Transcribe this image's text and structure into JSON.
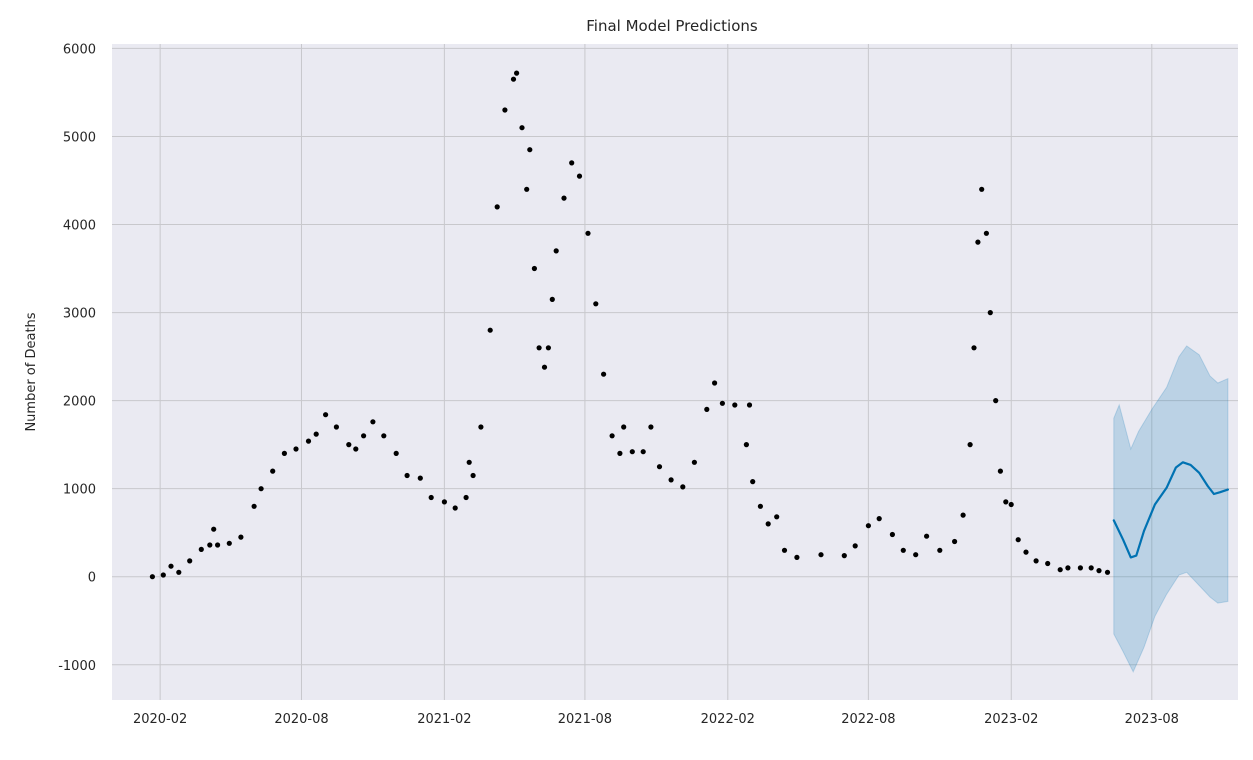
{
  "chart_data": {
    "type": "scatter",
    "title": "Final Model Predictions",
    "xlabel": "",
    "ylabel": "Number of Deaths",
    "x_ticks": [
      "2020-02",
      "2020-08",
      "2021-02",
      "2021-08",
      "2022-02",
      "2022-08",
      "2023-02",
      "2023-08"
    ],
    "y_ticks": [
      -1000,
      0,
      1000,
      2000,
      3000,
      4000,
      5000,
      6000
    ],
    "xlim": [
      "2019-12-01",
      "2023-11-20"
    ],
    "ylim": [
      -1400,
      6050
    ],
    "grid": true,
    "colors": {
      "background": "#eaeaf2",
      "grid": "#c8c8cc",
      "observed": "#000000",
      "forecast_line": "#0072b2",
      "forecast_band": "#0072b2"
    },
    "series": [
      {
        "kind": "observed-points",
        "points": [
          [
            "2020-01-22",
            0
          ],
          [
            "2020-02-05",
            20
          ],
          [
            "2020-02-15",
            120
          ],
          [
            "2020-02-25",
            50
          ],
          [
            "2020-03-10",
            180
          ],
          [
            "2020-03-25",
            310
          ],
          [
            "2020-04-05",
            360
          ],
          [
            "2020-04-10",
            540
          ],
          [
            "2020-04-15",
            360
          ],
          [
            "2020-04-30",
            380
          ],
          [
            "2020-05-15",
            450
          ],
          [
            "2020-06-01",
            800
          ],
          [
            "2020-06-10",
            1000
          ],
          [
            "2020-06-25",
            1200
          ],
          [
            "2020-07-10",
            1400
          ],
          [
            "2020-07-25",
            1450
          ],
          [
            "2020-08-10",
            1540
          ],
          [
            "2020-08-20",
            1620
          ],
          [
            "2020-09-01",
            1840
          ],
          [
            "2020-09-15",
            1700
          ],
          [
            "2020-10-01",
            1500
          ],
          [
            "2020-10-10",
            1450
          ],
          [
            "2020-10-20",
            1600
          ],
          [
            "2020-11-01",
            1760
          ],
          [
            "2020-11-15",
            1600
          ],
          [
            "2020-12-01",
            1400
          ],
          [
            "2020-12-15",
            1150
          ],
          [
            "2021-01-01",
            1120
          ],
          [
            "2021-01-15",
            900
          ],
          [
            "2021-02-01",
            850
          ],
          [
            "2021-02-15",
            780
          ],
          [
            "2021-03-01",
            900
          ],
          [
            "2021-03-05",
            1300
          ],
          [
            "2021-03-10",
            1150
          ],
          [
            "2021-03-20",
            1700
          ],
          [
            "2021-04-01",
            2800
          ],
          [
            "2021-04-10",
            4200
          ],
          [
            "2021-04-20",
            5300
          ],
          [
            "2021-05-01",
            5650
          ],
          [
            "2021-05-05",
            5720
          ],
          [
            "2021-05-12",
            5100
          ],
          [
            "2021-05-18",
            4400
          ],
          [
            "2021-05-22",
            4850
          ],
          [
            "2021-05-28",
            3500
          ],
          [
            "2021-06-03",
            2600
          ],
          [
            "2021-06-10",
            2380
          ],
          [
            "2021-06-15",
            2600
          ],
          [
            "2021-06-20",
            3150
          ],
          [
            "2021-06-25",
            3700
          ],
          [
            "2021-07-05",
            4300
          ],
          [
            "2021-07-15",
            4700
          ],
          [
            "2021-07-25",
            4550
          ],
          [
            "2021-08-05",
            3900
          ],
          [
            "2021-08-15",
            3100
          ],
          [
            "2021-08-25",
            2300
          ],
          [
            "2021-09-05",
            1600
          ],
          [
            "2021-09-15",
            1400
          ],
          [
            "2021-09-20",
            1700
          ],
          [
            "2021-10-01",
            1420
          ],
          [
            "2021-10-15",
            1420
          ],
          [
            "2021-10-25",
            1700
          ],
          [
            "2021-11-05",
            1250
          ],
          [
            "2021-11-20",
            1100
          ],
          [
            "2021-12-05",
            1020
          ],
          [
            "2021-12-20",
            1300
          ],
          [
            "2022-01-05",
            1900
          ],
          [
            "2022-01-15",
            2200
          ],
          [
            "2022-01-25",
            1970
          ],
          [
            "2022-02-10",
            1950
          ],
          [
            "2022-02-25",
            1500
          ],
          [
            "2022-03-01",
            1950
          ],
          [
            "2022-03-05",
            1080
          ],
          [
            "2022-03-15",
            800
          ],
          [
            "2022-03-25",
            600
          ],
          [
            "2022-04-05",
            680
          ],
          [
            "2022-04-15",
            300
          ],
          [
            "2022-05-01",
            220
          ],
          [
            "2022-06-01",
            250
          ],
          [
            "2022-07-01",
            240
          ],
          [
            "2022-07-15",
            350
          ],
          [
            "2022-08-01",
            580
          ],
          [
            "2022-08-15",
            660
          ],
          [
            "2022-09-01",
            480
          ],
          [
            "2022-09-15",
            300
          ],
          [
            "2022-10-01",
            250
          ],
          [
            "2022-10-15",
            460
          ],
          [
            "2022-11-01",
            300
          ],
          [
            "2022-11-20",
            400
          ],
          [
            "2022-12-01",
            700
          ],
          [
            "2022-12-10",
            1500
          ],
          [
            "2022-12-15",
            2600
          ],
          [
            "2022-12-20",
            3800
          ],
          [
            "2022-12-25",
            4400
          ],
          [
            "2022-12-31",
            3900
          ],
          [
            "2023-01-05",
            3000
          ],
          [
            "2023-01-12",
            2000
          ],
          [
            "2023-01-18",
            1200
          ],
          [
            "2023-01-25",
            850
          ],
          [
            "2023-02-01",
            820
          ],
          [
            "2023-02-10",
            420
          ],
          [
            "2023-02-20",
            280
          ],
          [
            "2023-03-05",
            180
          ],
          [
            "2023-03-20",
            150
          ],
          [
            "2023-04-05",
            80
          ],
          [
            "2023-04-15",
            100
          ],
          [
            "2023-05-01",
            100
          ],
          [
            "2023-05-15",
            100
          ],
          [
            "2023-05-25",
            70
          ],
          [
            "2023-06-05",
            50
          ]
        ]
      },
      {
        "kind": "forecast-line",
        "points": [
          [
            "2023-06-13",
            640
          ],
          [
            "2023-06-25",
            420
          ],
          [
            "2023-07-05",
            220
          ],
          [
            "2023-07-12",
            240
          ],
          [
            "2023-07-22",
            520
          ],
          [
            "2023-08-05",
            820
          ],
          [
            "2023-08-20",
            1010
          ],
          [
            "2023-09-01",
            1240
          ],
          [
            "2023-09-10",
            1300
          ],
          [
            "2023-09-20",
            1270
          ],
          [
            "2023-10-01",
            1180
          ],
          [
            "2023-10-12",
            1030
          ],
          [
            "2023-10-20",
            940
          ],
          [
            "2023-10-28",
            960
          ],
          [
            "2023-11-07",
            990
          ]
        ]
      },
      {
        "kind": "forecast-interval",
        "upper": [
          [
            "2023-06-13",
            1800
          ],
          [
            "2023-06-20",
            1950
          ],
          [
            "2023-07-05",
            1450
          ],
          [
            "2023-07-15",
            1650
          ],
          [
            "2023-08-01",
            1900
          ],
          [
            "2023-08-20",
            2150
          ],
          [
            "2023-09-05",
            2500
          ],
          [
            "2023-09-15",
            2620
          ],
          [
            "2023-10-01",
            2520
          ],
          [
            "2023-10-15",
            2280
          ],
          [
            "2023-10-25",
            2200
          ],
          [
            "2023-11-07",
            2250
          ]
        ],
        "lower": [
          [
            "2023-06-13",
            -650
          ],
          [
            "2023-06-25",
            -850
          ],
          [
            "2023-07-08",
            -1080
          ],
          [
            "2023-07-22",
            -800
          ],
          [
            "2023-08-05",
            -450
          ],
          [
            "2023-08-20",
            -200
          ],
          [
            "2023-09-05",
            20
          ],
          [
            "2023-09-15",
            50
          ],
          [
            "2023-10-01",
            -100
          ],
          [
            "2023-10-15",
            -230
          ],
          [
            "2023-10-25",
            -300
          ],
          [
            "2023-11-07",
            -280
          ]
        ]
      }
    ]
  }
}
